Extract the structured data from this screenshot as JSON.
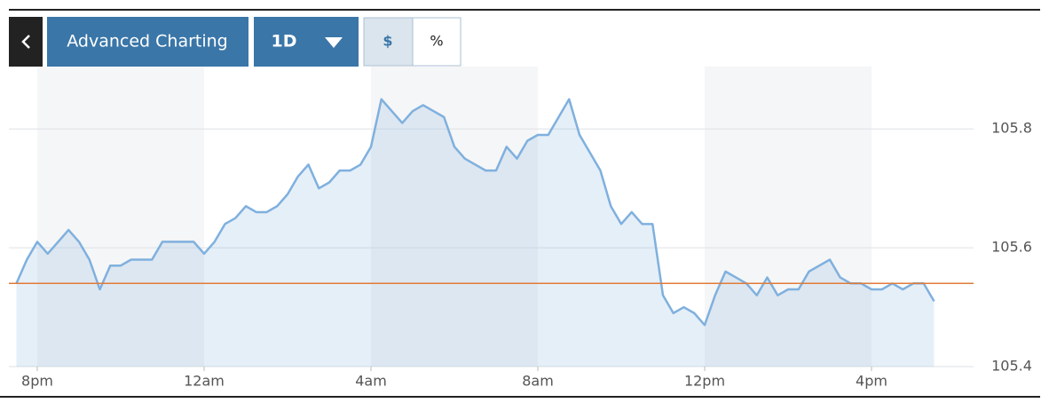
{
  "toolbar": {
    "button": "Advanced Charting",
    "range": "1D",
    "units": [
      "$",
      "%"
    ]
  },
  "chart_data": {
    "type": "line",
    "categories": [
      null,
      null,
      "8pm",
      null,
      null,
      null,
      null,
      null,
      null,
      null,
      null,
      null,
      null,
      null,
      null,
      null,
      null,
      null,
      "12am",
      null,
      null,
      null,
      null,
      null,
      null,
      null,
      null,
      null,
      null,
      null,
      null,
      null,
      null,
      null,
      "4am",
      null,
      null,
      null,
      null,
      null,
      null,
      null,
      null,
      null,
      null,
      null,
      null,
      null,
      null,
      null,
      "8am",
      null,
      null,
      null,
      null,
      null,
      null,
      null,
      null,
      null,
      null,
      null,
      null,
      null,
      null,
      null,
      "12pm",
      null,
      null,
      null,
      null,
      null,
      null,
      null,
      null,
      null,
      null,
      null,
      null,
      null,
      null,
      null,
      "4pm",
      null,
      null,
      null,
      null,
      null,
      null
    ],
    "series": [
      {
        "color": "#7fb0de",
        "values": [
          105.54,
          105.58,
          105.61,
          105.59,
          105.61,
          105.63,
          105.61,
          105.58,
          105.53,
          105.57,
          105.57,
          105.58,
          105.58,
          105.58,
          105.61,
          105.61,
          105.61,
          105.61,
          105.59,
          105.61,
          105.64,
          105.65,
          105.67,
          105.66,
          105.66,
          105.67,
          105.69,
          105.72,
          105.74,
          105.7,
          105.71,
          105.73,
          105.73,
          105.74,
          105.77,
          105.85,
          105.83,
          105.81,
          105.83,
          105.84,
          105.83,
          105.82,
          105.77,
          105.75,
          105.74,
          105.73,
          105.73,
          105.77,
          105.75,
          105.78,
          105.79,
          105.79,
          105.82,
          105.85,
          105.79,
          105.76,
          105.73,
          105.67,
          105.64,
          105.66,
          105.64,
          105.64,
          105.52,
          105.49,
          105.5,
          105.49,
          105.47,
          105.52,
          105.56,
          105.55,
          105.54,
          105.52,
          105.55,
          105.52,
          105.53,
          105.53,
          105.56,
          105.57,
          105.58,
          105.55,
          105.54,
          105.54,
          105.53,
          105.53,
          105.54,
          105.53,
          105.54,
          105.54,
          105.51
        ]
      }
    ],
    "reference_line": 105.54,
    "reference_color": "#e07b39",
    "ylim": [
      105.4,
      105.89
    ],
    "yticks": [
      105.4,
      105.6,
      105.8
    ],
    "grid": true
  }
}
